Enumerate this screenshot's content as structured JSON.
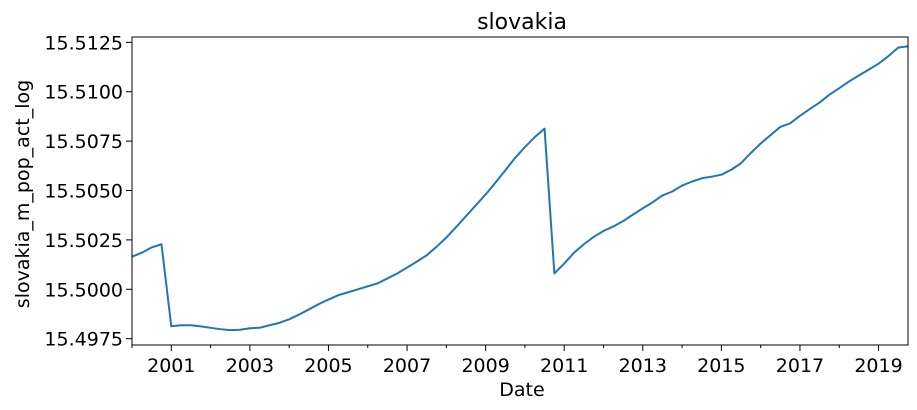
{
  "chart_data": {
    "type": "line",
    "title": "slovakia",
    "xlabel": "Date",
    "ylabel": "slovakia_m_pop_act_log",
    "xlim": [
      2000.0,
      2019.75
    ],
    "ylim": [
      15.49718,
      15.51277
    ],
    "grid": false,
    "legend": "none",
    "x_ticks": [
      2001,
      2003,
      2005,
      2007,
      2009,
      2011,
      2013,
      2015,
      2017,
      2019
    ],
    "x_tick_labels": [
      "2001",
      "2003",
      "2005",
      "2007",
      "2009",
      "2011",
      "2013",
      "2015",
      "2017",
      "2019"
    ],
    "x_minor_ticks": [
      2000,
      2002,
      2004,
      2006,
      2008,
      2010,
      2012,
      2014,
      2016,
      2018
    ],
    "y_ticks": [
      15.4975,
      15.5,
      15.5025,
      15.505,
      15.5075,
      15.51,
      15.5125
    ],
    "y_tick_labels": [
      "15.4975",
      "15.5000",
      "15.5025",
      "15.5050",
      "15.5075",
      "15.5100",
      "15.5125"
    ],
    "series": [
      {
        "color": "#1f77b4",
        "x": [
          2000.0,
          2000.25,
          2000.5,
          2000.75,
          2001.0,
          2001.25,
          2001.5,
          2001.75,
          2002.0,
          2002.25,
          2002.5,
          2002.75,
          2003.0,
          2003.25,
          2003.5,
          2003.75,
          2004.0,
          2004.25,
          2004.5,
          2004.75,
          2005.0,
          2005.25,
          2005.5,
          2005.75,
          2006.0,
          2006.25,
          2006.5,
          2006.75,
          2007.0,
          2007.25,
          2007.5,
          2007.75,
          2008.0,
          2008.25,
          2008.5,
          2008.75,
          2009.0,
          2009.25,
          2009.5,
          2009.75,
          2010.0,
          2010.25,
          2010.5,
          2010.75,
          2011.0,
          2011.25,
          2011.5,
          2011.75,
          2012.0,
          2012.25,
          2012.5,
          2012.75,
          2013.0,
          2013.25,
          2013.5,
          2013.75,
          2014.0,
          2014.25,
          2014.5,
          2014.75,
          2015.0,
          2015.25,
          2015.5,
          2015.75,
          2016.0,
          2016.25,
          2016.5,
          2016.75,
          2017.0,
          2017.25,
          2017.5,
          2017.75,
          2018.0,
          2018.25,
          2018.5,
          2018.75,
          2019.0,
          2019.25,
          2019.5,
          2019.75
        ],
        "y": [
          15.50165,
          15.50185,
          15.50212,
          15.50228,
          15.49813,
          15.49818,
          15.49818,
          15.49812,
          15.49805,
          15.49798,
          15.49793,
          15.49795,
          15.49803,
          15.49805,
          15.49818,
          15.4983,
          15.49848,
          15.49872,
          15.49898,
          15.49925,
          15.49948,
          15.4997,
          15.49985,
          15.5,
          15.50015,
          15.5003,
          15.50055,
          15.5008,
          15.5011,
          15.5014,
          15.50172,
          15.50215,
          15.50262,
          15.50315,
          15.5037,
          15.50425,
          15.5048,
          15.5054,
          15.50602,
          15.50665,
          15.5072,
          15.5077,
          15.50813,
          15.5008,
          15.5013,
          15.50185,
          15.50228,
          15.50265,
          15.50295,
          15.50318,
          15.50345,
          15.50378,
          15.5041,
          15.5044,
          15.50475,
          15.50495,
          15.50525,
          15.50545,
          15.50562,
          15.5057,
          15.5058,
          15.50605,
          15.50638,
          15.5069,
          15.50738,
          15.5078,
          15.50822,
          15.5084,
          15.50878,
          15.50912,
          15.50945,
          15.50985,
          15.51018,
          15.51052,
          15.51082,
          15.51112,
          15.51142,
          15.5118,
          15.51223,
          15.5123
        ]
      }
    ]
  }
}
